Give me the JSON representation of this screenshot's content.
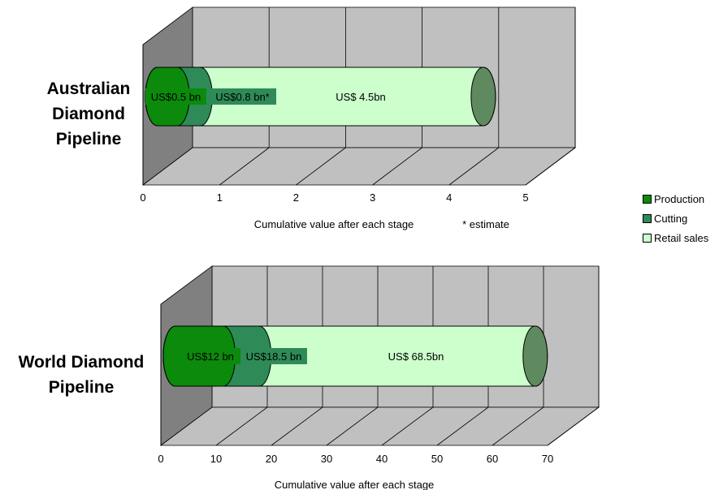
{
  "colors": {
    "production": "#0b8a0b",
    "cutting": "#2e8b57",
    "retail": "#ccffcc",
    "end_cap": "#5f8a5f",
    "wall": "#c0c0c0",
    "floor": "#c0c0c0",
    "side_wall": "#808080"
  },
  "legend": [
    {
      "key": "production",
      "label": "Production"
    },
    {
      "key": "cutting",
      "label": "Cutting"
    },
    {
      "key": "retail",
      "label": "Retail sales"
    }
  ],
  "chart_data": [
    {
      "type": "bar",
      "title": "Australian Diamond Pipeline",
      "title_lines": [
        "Australian",
        "Diamond",
        "Pipeline"
      ],
      "xlabel": "Cumulative value after each stage",
      "note": "* estimate",
      "xlim": [
        0,
        5
      ],
      "ticks": [
        "0",
        "1",
        "2",
        "3",
        "4",
        "5"
      ],
      "stages": [
        {
          "name": "Production",
          "value": 0.5,
          "label": "US$0.5 bn"
        },
        {
          "name": "Cutting",
          "value": 0.8,
          "label": "US$0.8 bn*"
        },
        {
          "name": "Retail sales",
          "value": 4.5,
          "label": "US$ 4.5bn"
        }
      ]
    },
    {
      "type": "bar",
      "title": "World Diamond Pipeline",
      "title_lines": [
        "World Diamond",
        "Pipeline"
      ],
      "xlabel": "Cumulative value after each stage",
      "note": "",
      "xlim": [
        0,
        70
      ],
      "ticks": [
        "0",
        "10",
        "20",
        "30",
        "40",
        "50",
        "60",
        "70"
      ],
      "stages": [
        {
          "name": "Production",
          "value": 12,
          "label": "US$12 bn"
        },
        {
          "name": "Cutting",
          "value": 18.5,
          "label": "US$18.5 bn"
        },
        {
          "name": "Retail sales",
          "value": 68.5,
          "label": "US$ 68.5bn"
        }
      ]
    }
  ]
}
